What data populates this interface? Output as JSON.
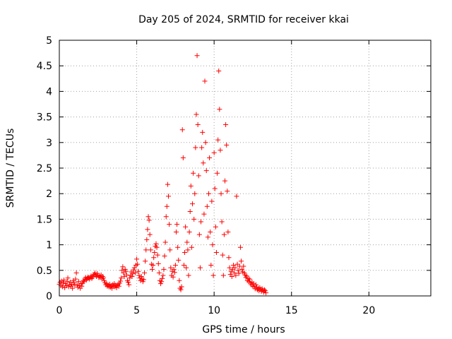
{
  "chart_data": {
    "type": "scatter",
    "title": "Day 205 of 2024, SRMTID for receiver kkai",
    "xlabel": "GPS time / hours",
    "ylabel": "SRMTID / TECUs",
    "xlim": [
      0,
      24
    ],
    "ylim": [
      0,
      5
    ],
    "xticks": [
      0,
      5,
      10,
      15,
      20
    ],
    "xtick_labels": [
      "0",
      "5",
      "10",
      "15",
      "20"
    ],
    "yticks": [
      0,
      0.5,
      1,
      1.5,
      2,
      2.5,
      3,
      3.5,
      4,
      4.5,
      5
    ],
    "ytick_labels": [
      "0",
      "0.5",
      "1",
      "1.5",
      "2",
      "2.5",
      "3",
      "3.5",
      "4",
      "4.5",
      "5"
    ],
    "grid": true,
    "marker": "+",
    "marker_color": "#ff0000",
    "series": [
      {
        "name": "SRMTID",
        "points": [
          [
            0.0,
            0.23
          ],
          [
            0.05,
            0.27
          ],
          [
            0.1,
            0.2
          ],
          [
            0.15,
            0.29
          ],
          [
            0.2,
            0.18
          ],
          [
            0.25,
            0.25
          ],
          [
            0.3,
            0.31
          ],
          [
            0.35,
            0.16
          ],
          [
            0.4,
            0.24
          ],
          [
            0.45,
            0.2
          ],
          [
            0.5,
            0.28
          ],
          [
            0.55,
            0.35
          ],
          [
            0.6,
            0.18
          ],
          [
            0.65,
            0.22
          ],
          [
            0.7,
            0.27
          ],
          [
            0.75,
            0.19
          ],
          [
            0.8,
            0.23
          ],
          [
            0.85,
            0.15
          ],
          [
            0.9,
            0.3
          ],
          [
            0.95,
            0.26
          ],
          [
            1.0,
            0.21
          ],
          [
            1.05,
            0.33
          ],
          [
            1.1,
            0.45
          ],
          [
            1.15,
            0.22
          ],
          [
            1.2,
            0.17
          ],
          [
            1.25,
            0.28
          ],
          [
            1.3,
            0.2
          ],
          [
            1.35,
            0.15
          ],
          [
            1.4,
            0.24
          ],
          [
            1.45,
            0.19
          ],
          [
            1.5,
            0.25
          ],
          [
            1.55,
            0.3
          ],
          [
            1.6,
            0.28
          ],
          [
            1.65,
            0.33
          ],
          [
            1.7,
            0.36
          ],
          [
            1.75,
            0.31
          ],
          [
            1.8,
            0.34
          ],
          [
            1.85,
            0.37
          ],
          [
            1.9,
            0.35
          ],
          [
            1.95,
            0.33
          ],
          [
            2.0,
            0.36
          ],
          [
            2.05,
            0.39
          ],
          [
            2.1,
            0.34
          ],
          [
            2.15,
            0.37
          ],
          [
            2.2,
            0.4
          ],
          [
            2.25,
            0.42
          ],
          [
            2.3,
            0.45
          ],
          [
            2.35,
            0.41
          ],
          [
            2.4,
            0.38
          ],
          [
            2.45,
            0.44
          ],
          [
            2.5,
            0.4
          ],
          [
            2.55,
            0.36
          ],
          [
            2.6,
            0.39
          ],
          [
            2.65,
            0.37
          ],
          [
            2.7,
            0.41
          ],
          [
            2.75,
            0.33
          ],
          [
            2.8,
            0.38
          ],
          [
            2.85,
            0.35
          ],
          [
            2.9,
            0.3
          ],
          [
            2.95,
            0.26
          ],
          [
            3.0,
            0.22
          ],
          [
            3.05,
            0.24
          ],
          [
            3.1,
            0.19
          ],
          [
            3.15,
            0.21
          ],
          [
            3.2,
            0.18
          ],
          [
            3.25,
            0.23
          ],
          [
            3.3,
            0.17
          ],
          [
            3.35,
            0.2
          ],
          [
            3.4,
            0.15
          ],
          [
            3.45,
            0.22
          ],
          [
            3.5,
            0.19
          ],
          [
            3.55,
            0.24
          ],
          [
            3.6,
            0.18
          ],
          [
            3.65,
            0.21
          ],
          [
            3.7,
            0.16
          ],
          [
            3.75,
            0.2
          ],
          [
            3.8,
            0.23
          ],
          [
            3.85,
            0.19
          ],
          [
            3.9,
            0.25
          ],
          [
            3.95,
            0.29
          ],
          [
            4.0,
            0.35
          ],
          [
            4.05,
            0.5
          ],
          [
            4.1,
            0.57
          ],
          [
            4.15,
            0.45
          ],
          [
            4.2,
            0.38
          ],
          [
            4.25,
            0.52
          ],
          [
            4.3,
            0.48
          ],
          [
            4.35,
            0.41
          ],
          [
            4.4,
            0.3
          ],
          [
            4.45,
            0.27
          ],
          [
            4.5,
            0.22
          ],
          [
            4.55,
            0.35
          ],
          [
            4.6,
            0.4
          ],
          [
            4.65,
            0.47
          ],
          [
            4.7,
            0.38
          ],
          [
            4.75,
            0.44
          ],
          [
            4.8,
            0.51
          ],
          [
            4.85,
            0.55
          ],
          [
            4.9,
            0.45
          ],
          [
            4.95,
            0.6
          ],
          [
            5.0,
            0.72
          ],
          [
            5.05,
            0.62
          ],
          [
            5.1,
            0.48
          ],
          [
            5.15,
            0.4
          ],
          [
            5.2,
            0.35
          ],
          [
            5.25,
            0.3
          ],
          [
            5.3,
            0.38
          ],
          [
            5.35,
            0.33
          ],
          [
            5.4,
            0.28
          ],
          [
            5.45,
            0.32
          ],
          [
            5.5,
            0.45
          ],
          [
            5.55,
            0.68
          ],
          [
            5.6,
            0.9
          ],
          [
            5.65,
            1.1
          ],
          [
            5.7,
            1.3
          ],
          [
            5.75,
            1.55
          ],
          [
            5.8,
            1.48
          ],
          [
            5.85,
            1.2
          ],
          [
            5.9,
            0.9
          ],
          [
            5.95,
            0.62
          ],
          [
            6.0,
            0.52
          ],
          [
            6.05,
            0.6
          ],
          [
            6.1,
            0.75
          ],
          [
            6.15,
            0.85
          ],
          [
            6.2,
            0.97
          ],
          [
            6.25,
            1.02
          ],
          [
            6.3,
            0.95
          ],
          [
            6.35,
            0.8
          ],
          [
            6.4,
            0.63
          ],
          [
            6.45,
            0.45
          ],
          [
            6.5,
            0.3
          ],
          [
            6.55,
            0.24
          ],
          [
            6.6,
            0.28
          ],
          [
            6.65,
            0.34
          ],
          [
            6.7,
            0.4
          ],
          [
            6.75,
            0.52
          ],
          [
            6.8,
            0.78
          ],
          [
            6.85,
            1.05
          ],
          [
            6.9,
            1.55
          ],
          [
            6.95,
            1.75
          ],
          [
            7.0,
            2.18
          ],
          [
            7.05,
            1.95
          ],
          [
            7.1,
            1.4
          ],
          [
            7.15,
            0.9
          ],
          [
            7.2,
            0.55
          ],
          [
            7.25,
            0.4
          ],
          [
            7.3,
            0.48
          ],
          [
            7.35,
            0.37
          ],
          [
            7.4,
            0.52
          ],
          [
            7.45,
            0.46
          ],
          [
            7.5,
            0.6
          ],
          [
            7.55,
            1.25
          ],
          [
            7.6,
            1.4
          ],
          [
            7.65,
            0.95
          ],
          [
            7.7,
            0.7
          ],
          [
            7.75,
            0.3
          ],
          [
            7.8,
            0.15
          ],
          [
            7.85,
            0.12
          ],
          [
            7.9,
            0.18
          ],
          [
            7.95,
            3.25
          ],
          [
            8.0,
            2.7
          ],
          [
            8.05,
            0.6
          ],
          [
            8.1,
            0.85
          ],
          [
            8.15,
            1.35
          ],
          [
            8.2,
            0.55
          ],
          [
            8.25,
            1.05
          ],
          [
            8.3,
            0.9
          ],
          [
            8.35,
            0.4
          ],
          [
            8.4,
            1.25
          ],
          [
            8.45,
            1.65
          ],
          [
            8.5,
            2.15
          ],
          [
            8.55,
            0.95
          ],
          [
            8.6,
            1.8
          ],
          [
            8.65,
            2.4
          ],
          [
            8.7,
            1.5
          ],
          [
            8.75,
            2.0
          ],
          [
            8.8,
            2.9
          ],
          [
            8.85,
            3.55
          ],
          [
            8.9,
            4.7
          ],
          [
            8.95,
            3.35
          ],
          [
            9.0,
            2.35
          ],
          [
            9.05,
            1.2
          ],
          [
            9.1,
            0.55
          ],
          [
            9.15,
            1.45
          ],
          [
            9.2,
            2.9
          ],
          [
            9.25,
            3.2
          ],
          [
            9.3,
            2.6
          ],
          [
            9.35,
            1.6
          ],
          [
            9.4,
            4.2
          ],
          [
            9.45,
            3.0
          ],
          [
            9.5,
            2.45
          ],
          [
            9.55,
            1.75
          ],
          [
            9.6,
            1.15
          ],
          [
            9.65,
            2.0
          ],
          [
            9.7,
            2.7
          ],
          [
            9.75,
            1.25
          ],
          [
            9.8,
            0.6
          ],
          [
            9.85,
            1.85
          ],
          [
            9.9,
            1.0
          ],
          [
            9.95,
            0.4
          ],
          [
            10.0,
            2.8
          ],
          [
            10.05,
            2.1
          ],
          [
            10.1,
            1.35
          ],
          [
            10.15,
            0.85
          ],
          [
            10.2,
            2.4
          ],
          [
            10.25,
            3.05
          ],
          [
            10.3,
            4.4
          ],
          [
            10.35,
            3.65
          ],
          [
            10.4,
            2.85
          ],
          [
            10.45,
            2.0
          ],
          [
            10.5,
            1.45
          ],
          [
            10.55,
            0.8
          ],
          [
            10.6,
            0.4
          ],
          [
            10.65,
            1.2
          ],
          [
            10.7,
            2.25
          ],
          [
            10.75,
            3.35
          ],
          [
            10.8,
            2.95
          ],
          [
            10.85,
            2.05
          ],
          [
            10.9,
            1.25
          ],
          [
            10.95,
            0.75
          ],
          [
            11.0,
            0.55
          ],
          [
            11.05,
            0.42
          ],
          [
            11.1,
            0.48
          ],
          [
            11.15,
            0.38
          ],
          [
            11.2,
            0.52
          ],
          [
            11.25,
            0.6
          ],
          [
            11.3,
            0.45
          ],
          [
            11.35,
            0.55
          ],
          [
            11.4,
            0.4
          ],
          [
            11.45,
            1.95
          ],
          [
            11.5,
            0.62
          ],
          [
            11.55,
            0.5
          ],
          [
            11.6,
            0.44
          ],
          [
            11.65,
            0.58
          ],
          [
            11.7,
            0.95
          ],
          [
            11.75,
            0.68
          ],
          [
            11.8,
            0.52
          ],
          [
            11.85,
            0.47
          ],
          [
            11.9,
            0.58
          ],
          [
            11.95,
            0.45
          ],
          [
            12.0,
            0.41
          ],
          [
            12.05,
            0.36
          ],
          [
            12.1,
            0.39
          ],
          [
            12.15,
            0.3
          ],
          [
            12.2,
            0.34
          ],
          [
            12.25,
            0.28
          ],
          [
            12.3,
            0.33
          ],
          [
            12.35,
            0.25
          ],
          [
            12.4,
            0.22
          ],
          [
            12.45,
            0.27
          ],
          [
            12.5,
            0.19
          ],
          [
            12.55,
            0.24
          ],
          [
            12.6,
            0.18
          ],
          [
            12.65,
            0.14
          ],
          [
            12.7,
            0.22
          ],
          [
            12.75,
            0.17
          ],
          [
            12.8,
            0.12
          ],
          [
            12.85,
            0.15
          ],
          [
            12.9,
            0.1
          ],
          [
            12.95,
            0.16
          ],
          [
            13.0,
            0.13
          ],
          [
            13.05,
            0.09
          ],
          [
            13.1,
            0.14
          ],
          [
            13.15,
            0.11
          ],
          [
            13.2,
            0.07
          ],
          [
            13.25,
            0.12
          ],
          [
            13.3,
            0.1
          ],
          [
            13.35,
            0.06
          ]
        ]
      }
    ]
  }
}
